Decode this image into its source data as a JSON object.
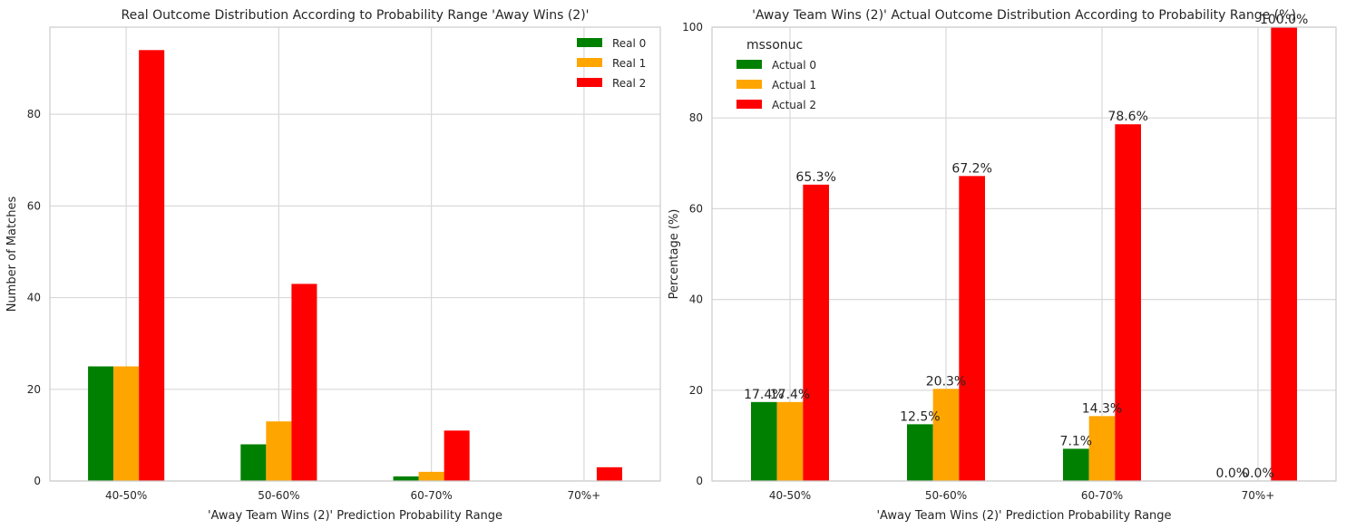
{
  "chart_data": [
    {
      "type": "bar",
      "title": "Real Outcome Distribution According to Probability Range 'Away Wins (2)'",
      "xlabel": "'Away Team Wins (2)' Prediction Probability Range",
      "ylabel": "Number of Matches",
      "categories": [
        "40-50%",
        "50-60%",
        "60-70%",
        "70%+"
      ],
      "ylim": [
        0,
        99
      ],
      "yticks": [
        0,
        20,
        40,
        60,
        80
      ],
      "grid": true,
      "legend_position": "top-right",
      "legend_title": "",
      "series": [
        {
          "name": "Real 0",
          "color": "#008000",
          "values": [
            25,
            8,
            1,
            0
          ]
        },
        {
          "name": "Real 1",
          "color": "#ffa500",
          "values": [
            25,
            13,
            2,
            0
          ]
        },
        {
          "name": "Real 2",
          "color": "#ff0000",
          "values": [
            94,
            43,
            11,
            3
          ]
        }
      ]
    },
    {
      "type": "bar",
      "title": "'Away Team Wins (2)' Actual Outcome Distribution According to Probability Range (%)",
      "xlabel": "'Away Team Wins (2)' Prediction Probability Range",
      "ylabel": "Percentage (%)",
      "categories": [
        "40-50%",
        "50-60%",
        "60-70%",
        "70%+"
      ],
      "ylim": [
        0,
        100
      ],
      "yticks": [
        0,
        20,
        40,
        60,
        80,
        100
      ],
      "grid": true,
      "legend_position": "top-left",
      "legend_title": "mssonuc",
      "series": [
        {
          "name": "Actual 0",
          "color": "#008000",
          "values": [
            17.4,
            12.5,
            7.1,
            0.0
          ],
          "labels": [
            "17.4%",
            "12.5%",
            "7.1%",
            "0.0%"
          ]
        },
        {
          "name": "Actual 1",
          "color": "#ffa500",
          "values": [
            17.4,
            20.3,
            14.3,
            0.0
          ],
          "labels": [
            "17.4%",
            "20.3%",
            "14.3%",
            "0.0%"
          ]
        },
        {
          "name": "Actual 2",
          "color": "#ff0000",
          "values": [
            65.3,
            67.2,
            78.6,
            100.0
          ],
          "labels": [
            "65.3%",
            "67.2%",
            "78.6%",
            "100.0%"
          ]
        }
      ]
    }
  ]
}
